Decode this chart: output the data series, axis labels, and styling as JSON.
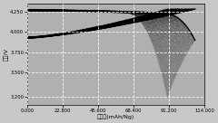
{
  "title": "",
  "xlabel": "比容量(mAh/Ng)",
  "ylabel": "电压/V",
  "xlim": [
    0.0,
    114.0
  ],
  "ylim": [
    3.1,
    4.35
  ],
  "xticks": [
    0.0,
    22.8,
    45.6,
    68.4,
    91.2,
    114.0
  ],
  "yticks": [
    3.2,
    3.5,
    3.75,
    4.0,
    4.25
  ],
  "background_color": "#c8c8c8",
  "plot_bg_color": "#b0b0b0",
  "grid_color": "#ffffff",
  "line_color": "#000000",
  "figsize": [
    2.4,
    1.36
  ],
  "dpi": 100,
  "x_max": 108.0,
  "charge_start_v": 3.93,
  "charge_end_v": 4.285,
  "discharge_start_v": 4.27,
  "discharge_drop_start": 0.8,
  "discharge_min_v": 3.18
}
